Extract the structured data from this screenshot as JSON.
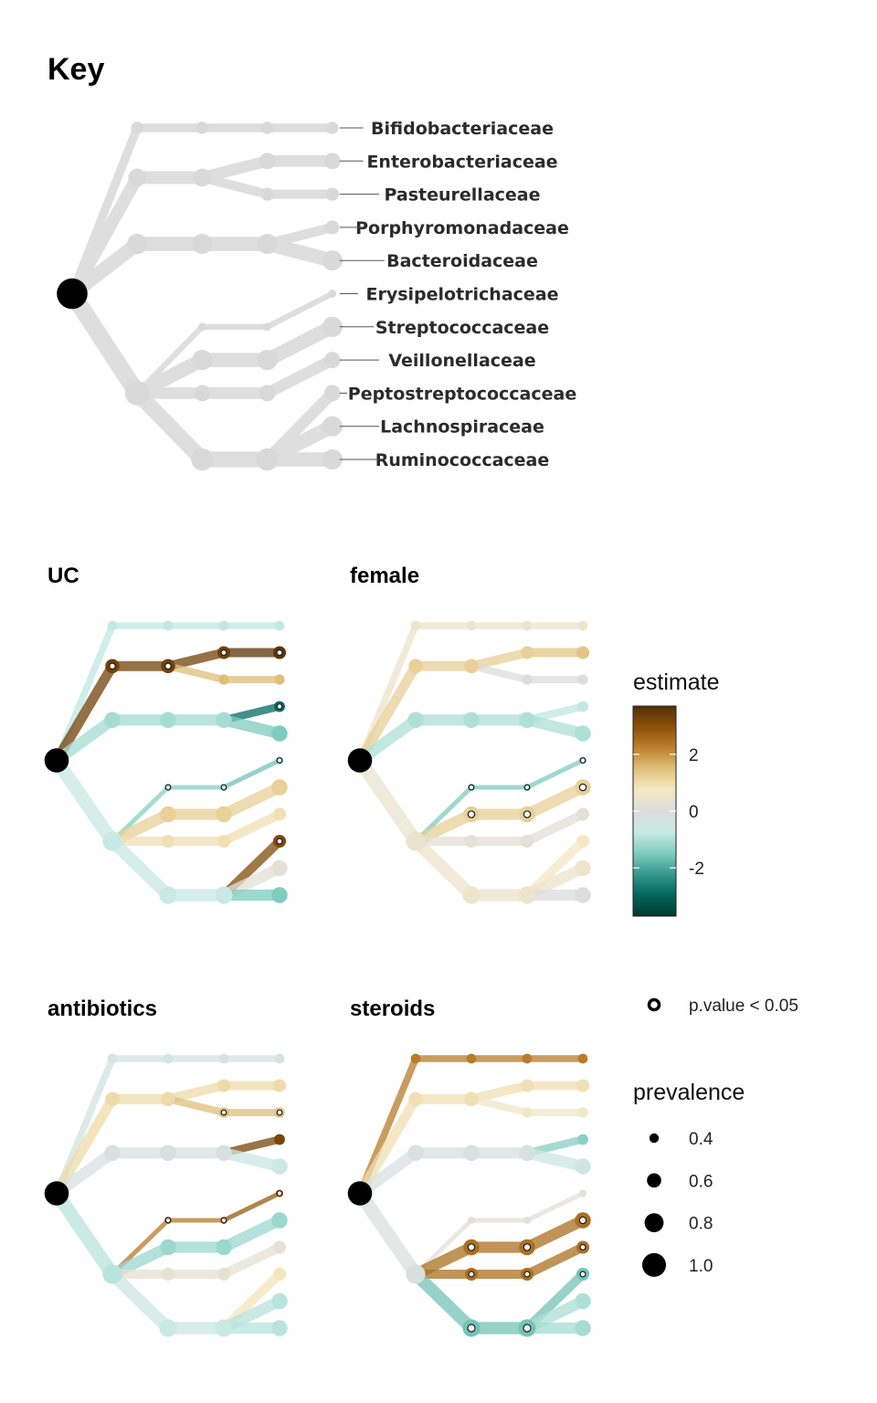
{
  "key_panel": {
    "title": "Key",
    "taxa": [
      "Bifidobacteriaceae",
      "Enterobacteriaceae",
      "Pasteurellaceae",
      "Porphyromonadaceae",
      "Bacteroidaceae",
      "Erysipelotrichaceae",
      "Streptococcaceae",
      "Veillonellaceae",
      "Peptostreptococcaceae",
      "Lachnospiraceae",
      "Ruminococcaceae"
    ]
  },
  "panels": [
    {
      "id": "uc",
      "title": "UC"
    },
    {
      "id": "female",
      "title": "female"
    },
    {
      "id": "antibiotics",
      "title": "antibiotics"
    },
    {
      "id": "steroids",
      "title": "steroids"
    }
  ],
  "legend": {
    "estimate_title": "estimate",
    "estimate_ticks": [
      "2",
      "0",
      "-2"
    ],
    "estimate_tick_values": [
      2,
      0,
      -2
    ],
    "estimate_range": [
      -3.7,
      3.7
    ],
    "colorbar_colors": [
      "#00392c",
      "#01665e",
      "#35978f",
      "#80cdc1",
      "#c7eae5",
      "#dddddd",
      "#f6e8c3",
      "#dfc27d",
      "#bf812d",
      "#8c510a",
      "#543005"
    ],
    "pvalue_label": "p.value < 0.05",
    "prevalence_title": "prevalence",
    "prevalence_labels": [
      "0.4",
      "0.6",
      "0.8",
      "1.0"
    ],
    "prevalence_values": [
      0.4,
      0.6,
      0.8,
      1.0
    ]
  }
}
